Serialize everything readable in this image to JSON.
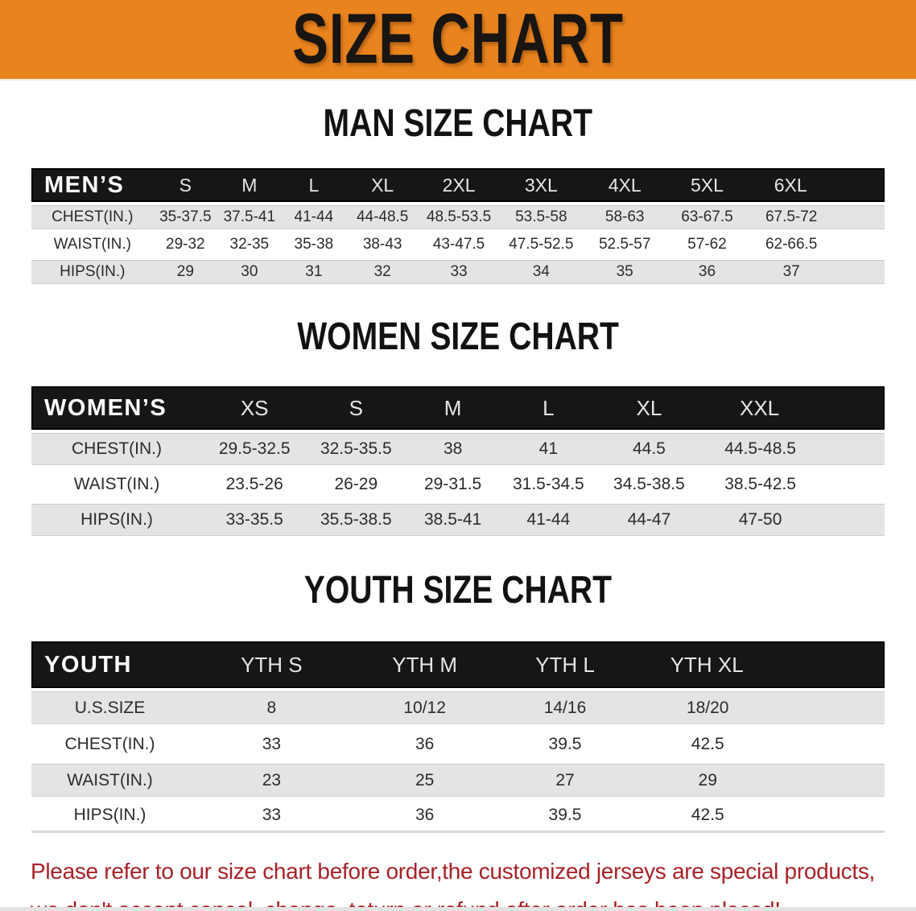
{
  "banner": {
    "title": "SIZE CHART",
    "bg_color": "#E8831E",
    "text_color": "#181512"
  },
  "colors": {
    "table_header_bg": "#161616",
    "row_shade": "#E4E4E4",
    "disclaimer_red": "#A82127"
  },
  "sections": [
    {
      "heading": "MAN SIZE CHART",
      "table": {
        "header_label": "MEN’S",
        "columns": [
          "S",
          "M",
          "L",
          "XL",
          "2XL",
          "3XL",
          "4XL",
          "5XL",
          "6XL"
        ],
        "rows": [
          {
            "label": "CHEST(IN.)",
            "values": [
              "35-37.5",
              "37.5-41",
              "41-44",
              "44-48.5",
              "48.5-53.5",
              "53.5-58",
              "58-63",
              "63-67.5",
              "67.5-72"
            ]
          },
          {
            "label": "WAIST(IN.)",
            "values": [
              "29-32",
              "32-35",
              "35-38",
              "38-43",
              "43-47.5",
              "47.5-52.5",
              "52.5-57",
              "57-62",
              "62-66.5"
            ]
          },
          {
            "label": "HIPS(IN.)",
            "values": [
              "29",
              "30",
              "31",
              "32",
              "33",
              "34",
              "35",
              "36",
              "37"
            ]
          }
        ]
      }
    },
    {
      "heading": "WOMEN SIZE CHART",
      "table": {
        "header_label": "WOMEN’S",
        "columns": [
          "XS",
          "S",
          "M",
          "L",
          "XL",
          "XXL"
        ],
        "rows": [
          {
            "label": "CHEST(IN.)",
            "values": [
              "29.5-32.5",
              "32.5-35.5",
              "38",
              "41",
              "44.5",
              "44.5-48.5"
            ]
          },
          {
            "label": "WAIST(IN.)",
            "values": [
              "23.5-26",
              "26-29",
              "29-31.5",
              "31.5-34.5",
              "34.5-38.5",
              "38.5-42.5"
            ]
          },
          {
            "label": "HIPS(IN.)",
            "values": [
              "33-35.5",
              "35.5-38.5",
              "38.5-41",
              "41-44",
              "44-47",
              "47-50"
            ]
          }
        ]
      }
    },
    {
      "heading": "YOUTH SIZE CHART",
      "table": {
        "header_label": "YOUTH",
        "columns": [
          "YTH S",
          "YTH M",
          "YTH L",
          "YTH XL"
        ],
        "rows": [
          {
            "label": "U.S.SIZE",
            "values": [
              "8",
              "10/12",
              "14/16",
              "18/20"
            ]
          },
          {
            "label": "CHEST(IN.)",
            "values": [
              "33",
              "36",
              "39.5",
              "42.5"
            ]
          },
          {
            "label": "WAIST(IN.)",
            "values": [
              "23",
              "25",
              "27",
              "29"
            ]
          },
          {
            "label": "HIPS(IN.)",
            "values": [
              "33",
              "36",
              "39.5",
              "42.5"
            ]
          }
        ]
      }
    }
  ],
  "footer": {
    "line1": "Please refer to our size chart before order,the customized jerseys are special products,",
    "line2": "we don't accept cancel, change, teturn or refund after order has been placed!"
  }
}
